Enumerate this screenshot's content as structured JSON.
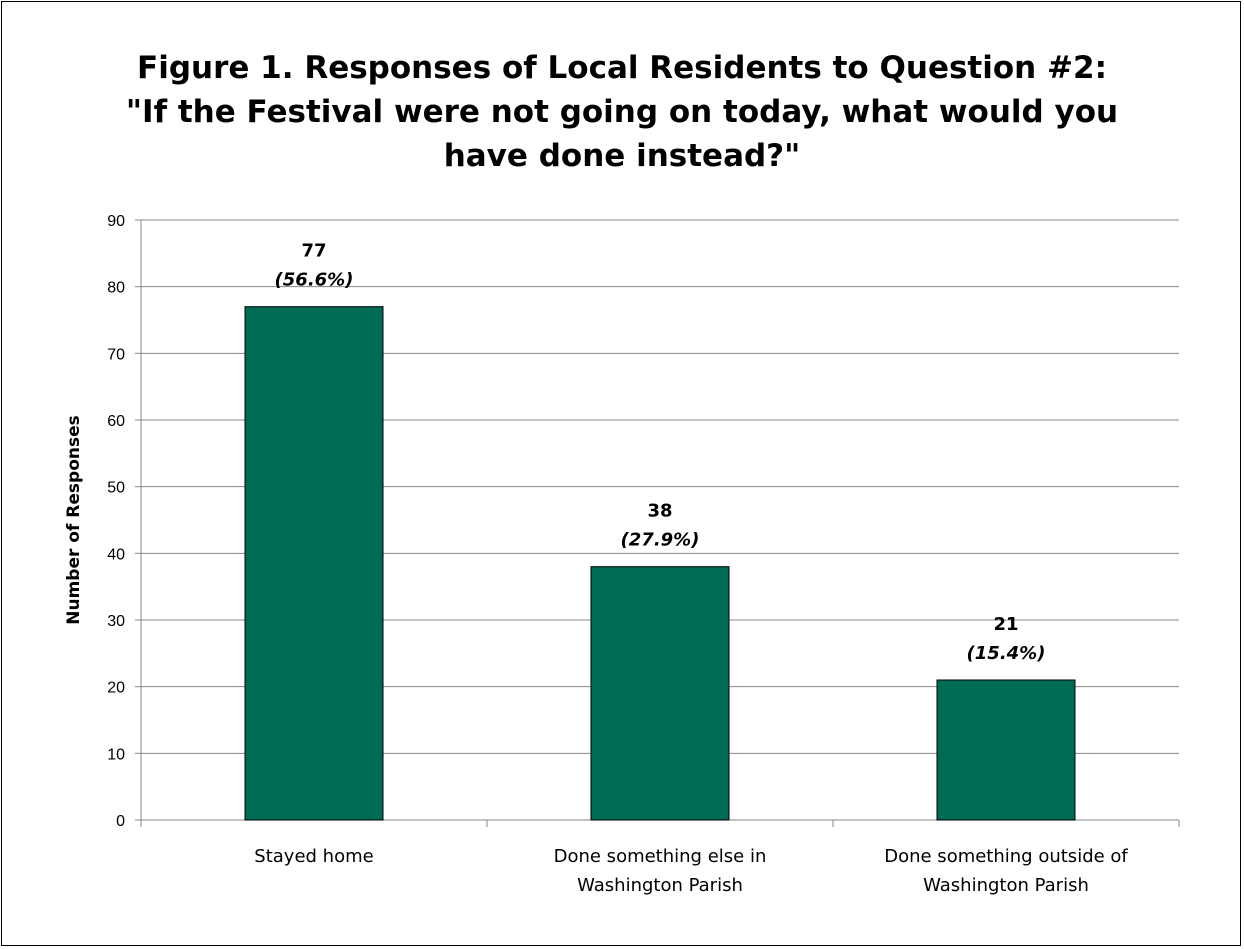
{
  "chart_data": {
    "type": "bar",
    "title_lines": [
      "Figure 1.  Responses of Local Residents to  Question #2:",
      "\"If the Festival were not going on today, what would you",
      "have done instead?\""
    ],
    "ylabel": "Number of Responses",
    "xlabel": "",
    "ylim": [
      0,
      90
    ],
    "yticks": [
      0,
      10,
      20,
      30,
      40,
      50,
      60,
      70,
      80,
      90
    ],
    "categories": [
      [
        "Stayed home"
      ],
      [
        "Done something else in",
        "Washington Parish"
      ],
      [
        "Done something outside of",
        "Washington Parish"
      ]
    ],
    "values": [
      77,
      38,
      21
    ],
    "value_labels": [
      "77",
      "38",
      "21"
    ],
    "percent_labels": [
      "56.6%",
      "27.9%",
      "15.4%"
    ],
    "bar_color": "#006B54",
    "grid": true,
    "legend": "none"
  }
}
